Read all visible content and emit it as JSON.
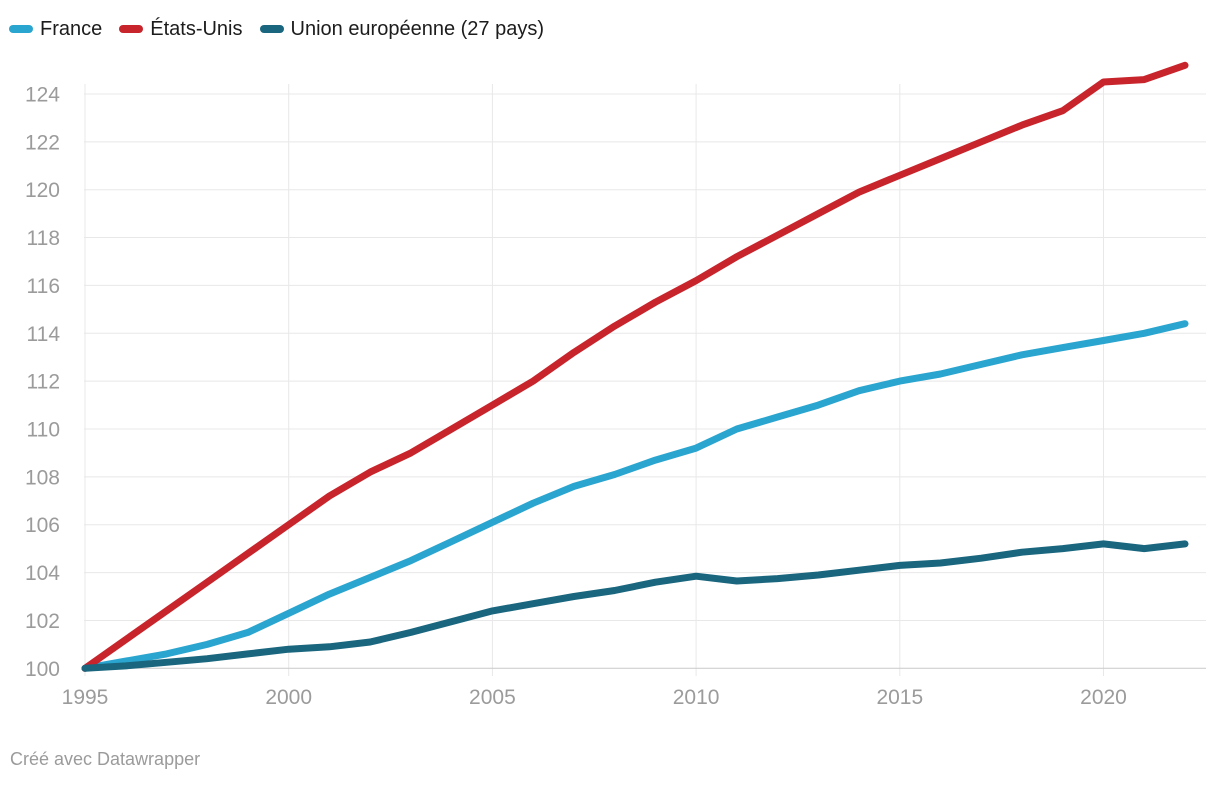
{
  "legend": {
    "items": [
      {
        "id": "france",
        "label": "France",
        "color": "#2aa5cf"
      },
      {
        "id": "etats-unis",
        "label": "États-Unis",
        "color": "#c8242c"
      },
      {
        "id": "ue27",
        "label": "Union européenne (27 pays)",
        "color": "#19667e"
      }
    ]
  },
  "chart_data": {
    "type": "line",
    "x": [
      1995,
      1996,
      1997,
      1998,
      1999,
      2000,
      2001,
      2002,
      2003,
      2004,
      2005,
      2006,
      2007,
      2008,
      2009,
      2010,
      2011,
      2012,
      2013,
      2014,
      2015,
      2016,
      2017,
      2018,
      2019,
      2020,
      2021,
      2022
    ],
    "series": [
      {
        "id": "france",
        "name": "France",
        "color": "#2aa5cf",
        "values": [
          100,
          100.3,
          100.6,
          101,
          101.5,
          102.3,
          103.1,
          103.8,
          104.5,
          105.3,
          106.1,
          106.9,
          107.6,
          108.1,
          108.7,
          109.2,
          110,
          110.5,
          111,
          111.6,
          112,
          112.3,
          112.7,
          113.1,
          113.4,
          113.7,
          114,
          114.4
        ]
      },
      {
        "id": "etats-unis",
        "name": "États-Unis",
        "color": "#c8242c",
        "values": [
          100,
          101.2,
          102.4,
          103.6,
          104.8,
          106,
          107.2,
          108.2,
          109,
          110,
          111,
          112,
          113.2,
          114.3,
          115.3,
          116.2,
          117.2,
          118.1,
          119,
          119.9,
          120.6,
          121.3,
          122,
          122.7,
          123.3,
          124.5,
          124.6,
          125.2
        ]
      },
      {
        "id": "ue27",
        "name": "Union européenne (27 pays)",
        "color": "#19667e",
        "values": [
          100,
          100.1,
          100.25,
          100.4,
          100.6,
          100.8,
          100.9,
          101.1,
          101.5,
          101.95,
          102.4,
          102.7,
          103,
          103.25,
          103.6,
          103.85,
          103.65,
          103.75,
          103.9,
          104.1,
          104.3,
          104.4,
          104.6,
          104.85,
          105,
          105.2,
          105,
          105.2
        ]
      }
    ],
    "xticks": [
      1995,
      2000,
      2005,
      2010,
      2015,
      2020
    ],
    "yticks": [
      100,
      102,
      104,
      106,
      108,
      110,
      112,
      114,
      116,
      118,
      120,
      122,
      124
    ],
    "xlim": [
      1995,
      2022.5
    ],
    "ylim": [
      100,
      125.5
    ],
    "grid": true,
    "legend_position": "top-left",
    "grid_color": "#e8e8e8",
    "baseline_color": "#c9c9c9",
    "tick_color": "#9b9b9b",
    "line_width": 7
  },
  "footer": {
    "attribution": "Créé avec Datawrapper"
  }
}
